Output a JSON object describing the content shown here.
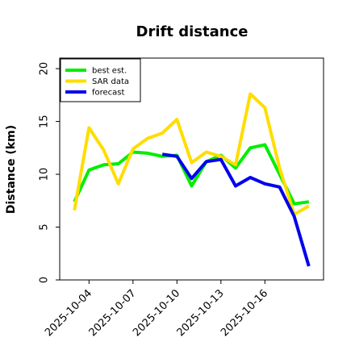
{
  "chart_data": {
    "type": "line",
    "title": "Drift distance",
    "xlabel": "",
    "ylabel": "Distance (km)",
    "ylim": [
      0,
      21
    ],
    "xlim": [
      "2025-10-02",
      "2025-10-20"
    ],
    "yticks": [
      0,
      5,
      10,
      15,
      20
    ],
    "ytick_labels": [
      "0",
      "5",
      "10",
      "15",
      "20"
    ],
    "xticks": [
      "2025-10-04",
      "2025-10-07",
      "2025-10-10",
      "2025-10-13",
      "2025-10-16"
    ],
    "xtick_labels": [
      "2025-10-04",
      "2025-10-07",
      "2025-10-10",
      "2025-10-13",
      "2025-10-16"
    ],
    "grid": false,
    "legend_position": "top-left",
    "series": [
      {
        "name": "best est.",
        "color": "#00ee00",
        "x": [
          "2025-10-03",
          "2025-10-04",
          "2025-10-05",
          "2025-10-06",
          "2025-10-07",
          "2025-10-08",
          "2025-10-09",
          "2025-10-10",
          "2025-10-11",
          "2025-10-12",
          "2025-10-13",
          "2025-10-14",
          "2025-10-15",
          "2025-10-16",
          "2025-10-17",
          "2025-10-18",
          "2025-10-19"
        ],
        "values": [
          7.4,
          10.4,
          10.9,
          11.0,
          12.1,
          12.0,
          11.7,
          11.8,
          8.9,
          11.2,
          11.8,
          10.6,
          12.5,
          12.8,
          10.0,
          7.2,
          7.4
        ]
      },
      {
        "name": "SAR data",
        "color": "#ffdd00",
        "x": [
          "2025-10-03",
          "2025-10-04",
          "2025-10-05",
          "2025-10-06",
          "2025-10-07",
          "2025-10-08",
          "2025-10-09",
          "2025-10-10",
          "2025-10-11",
          "2025-10-12",
          "2025-10-13",
          "2025-10-14",
          "2025-10-15",
          "2025-10-16",
          "2025-10-17",
          "2025-10-18",
          "2025-10-19"
        ],
        "values": [
          6.6,
          14.4,
          12.3,
          9.1,
          12.4,
          13.4,
          13.9,
          15.2,
          11.1,
          12.1,
          11.7,
          10.9,
          17.6,
          16.3,
          10.6,
          6.2,
          7.0
        ]
      },
      {
        "name": "forecast",
        "color": "#0000ee",
        "x": [
          "2025-10-09",
          "2025-10-10",
          "2025-10-11",
          "2025-10-12",
          "2025-10-13",
          "2025-10-14",
          "2025-10-15",
          "2025-10-16",
          "2025-10-17",
          "2025-10-18",
          "2025-10-19"
        ],
        "values": [
          11.9,
          11.7,
          9.6,
          11.2,
          11.4,
          8.9,
          9.7,
          9.1,
          8.8,
          6.0,
          1.3
        ]
      }
    ]
  }
}
